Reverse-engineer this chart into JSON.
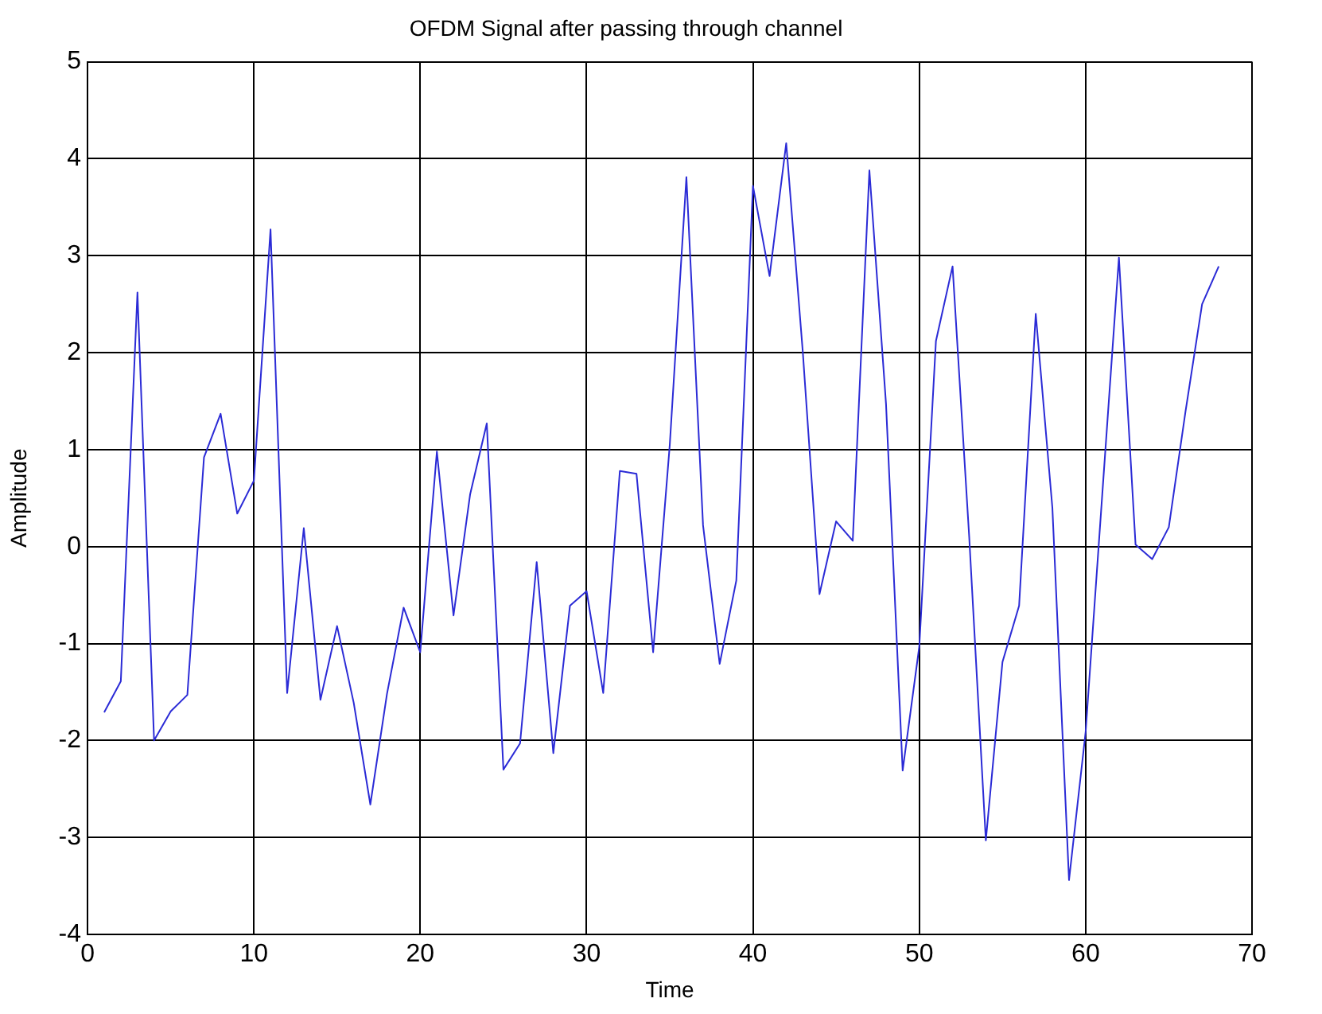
{
  "chart_data": {
    "type": "line",
    "title": "OFDM Signal after passing through channel",
    "xlabel": "Time",
    "ylabel": "Amplitude",
    "x": [
      1,
      2,
      3,
      4,
      5,
      6,
      7,
      8,
      9,
      10,
      11,
      12,
      13,
      14,
      15,
      16,
      17,
      18,
      19,
      20,
      21,
      22,
      23,
      24,
      25,
      26,
      27,
      28,
      29,
      30,
      31,
      32,
      33,
      34,
      35,
      36,
      37,
      38,
      39,
      40,
      41,
      42,
      43,
      44,
      45,
      46,
      47,
      48,
      49,
      50,
      51,
      52,
      53,
      54,
      55,
      56,
      57,
      58,
      59,
      60,
      61,
      62,
      63,
      64,
      65,
      66,
      67,
      68
    ],
    "series": [
      {
        "color": "#2b2bd6",
        "values": [
          -1.71,
          -1.39,
          2.62,
          -2.0,
          -1.7,
          -1.53,
          0.92,
          1.37,
          0.34,
          0.68,
          3.27,
          -1.51,
          0.19,
          -1.58,
          -0.82,
          -1.61,
          -2.66,
          -1.52,
          -0.63,
          -1.09,
          0.98,
          -0.71,
          0.54,
          1.27,
          -2.3,
          -2.03,
          -0.16,
          -2.13,
          -0.61,
          -0.46,
          -1.51,
          0.78,
          0.75,
          -1.09,
          1.05,
          3.81,
          0.22,
          -1.21,
          -0.35,
          3.72,
          2.79,
          4.16,
          2.0,
          -0.49,
          0.26,
          0.06,
          3.88,
          1.47,
          -2.31,
          -1.03,
          2.12,
          2.89,
          0.1,
          -3.03,
          -1.19,
          -0.61,
          2.4,
          0.4,
          -3.44,
          -1.91,
          0.54,
          2.98,
          0.02,
          -0.13,
          0.2,
          1.39,
          2.5,
          2.89
        ]
      }
    ],
    "xlim": [
      0,
      70
    ],
    "xticks": [
      0,
      10,
      20,
      30,
      40,
      50,
      60,
      70
    ],
    "ylim": [
      -4,
      5
    ],
    "yticks": [
      -4,
      -3,
      -2,
      -1,
      0,
      1,
      2,
      3,
      4,
      5
    ],
    "grid": true,
    "legend": false,
    "marker": "none",
    "line_style": "solid"
  }
}
